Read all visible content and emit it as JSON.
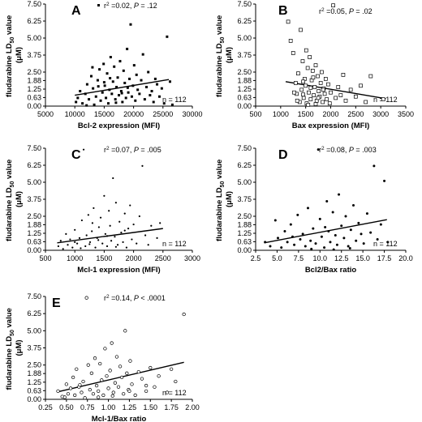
{
  "chart_data": [
    {
      "type": "scatter",
      "panel_label": "A",
      "xlabel": "Bcl-2 expression (MFI)",
      "ylabel": "fludarabine LD50 value (μM)",
      "xlim": [
        5000,
        30000
      ],
      "ylim": [
        0,
        7.5
      ],
      "xticks": [
        "5000",
        "10000",
        "15000",
        "20000",
        "25000",
        "30000"
      ],
      "yticks": [
        "0.00",
        "0.63",
        "1.25",
        "1.88",
        "2.50",
        "3.75",
        "5.00",
        "6.25",
        "7.50"
      ],
      "marker": "filled-square",
      "stats": {
        "r2": "0.02",
        "p": ".12"
      },
      "n_label": "n = 112",
      "regression": [
        [
          10000,
          0.8
        ],
        [
          26000,
          1.95
        ]
      ],
      "points": [
        [
          10200,
          0.3
        ],
        [
          10500,
          0.6
        ],
        [
          10900,
          1.1
        ],
        [
          11300,
          0.2
        ],
        [
          11800,
          0.9
        ],
        [
          12100,
          1.6
        ],
        [
          12400,
          0.5
        ],
        [
          12800,
          2.2
        ],
        [
          13100,
          1.3
        ],
        [
          13300,
          0.1
        ],
        [
          13600,
          0.7
        ],
        [
          13900,
          1.9
        ],
        [
          14200,
          2.7
        ],
        [
          14400,
          0.4
        ],
        [
          14700,
          1.0
        ],
        [
          14900,
          3.1
        ],
        [
          15100,
          1.5
        ],
        [
          15300,
          0.6
        ],
        [
          15500,
          2.4
        ],
        [
          15700,
          0.2
        ],
        [
          15900,
          1.2
        ],
        [
          16100,
          3.6
        ],
        [
          16300,
          0.9
        ],
        [
          16500,
          1.8
        ],
        [
          16700,
          2.9
        ],
        [
          16900,
          0.5
        ],
        [
          17100,
          1.4
        ],
        [
          17300,
          2.1
        ],
        [
          17500,
          0.8
        ],
        [
          17700,
          3.3
        ],
        [
          17900,
          1.1
        ],
        [
          18100,
          0.3
        ],
        [
          18300,
          2.6
        ],
        [
          18500,
          1.7
        ],
        [
          18700,
          0.6
        ],
        [
          18900,
          4.2
        ],
        [
          19100,
          1.0
        ],
        [
          19300,
          2.0
        ],
        [
          19500,
          6.0
        ],
        [
          19700,
          0.7
        ],
        [
          19900,
          1.5
        ],
        [
          20100,
          3.0
        ],
        [
          20300,
          0.4
        ],
        [
          20500,
          2.3
        ],
        [
          20700,
          1.2
        ],
        [
          21000,
          0.9
        ],
        [
          21300,
          1.9
        ],
        [
          21600,
          3.8
        ],
        [
          21900,
          0.5
        ],
        [
          22200,
          1.4
        ],
        [
          22500,
          2.5
        ],
        [
          22800,
          0.8
        ],
        [
          23100,
          1.1
        ],
        [
          23400,
          0.3
        ],
        [
          23700,
          2.0
        ],
        [
          24000,
          1.6
        ],
        [
          24400,
          0.7
        ],
        [
          24800,
          1.3
        ],
        [
          25200,
          0.2
        ],
        [
          25700,
          5.1
        ],
        [
          26200,
          1.8
        ],
        [
          26600,
          0.1
        ],
        [
          12000,
          0.05
        ],
        [
          14000,
          1.45
        ],
        [
          16000,
          2.05
        ],
        [
          18000,
          0.95
        ],
        [
          15000,
          1.75
        ],
        [
          17000,
          0.25
        ],
        [
          19000,
          1.35
        ],
        [
          13000,
          2.85
        ]
      ]
    },
    {
      "type": "scatter",
      "panel_label": "B",
      "xlabel": "Bax expression (MFI)",
      "ylabel": "fludarabine LD50 value (μM)",
      "xlim": [
        500,
        3500
      ],
      "ylim": [
        0,
        7.5
      ],
      "xticks": [
        "500",
        "1000",
        "1500",
        "2000",
        "2500",
        "3000",
        "3500"
      ],
      "yticks": [
        "0.00",
        "0.63",
        "1.25",
        "1.88",
        "2.50",
        "3.75",
        "5.00",
        "6.25",
        "7.50"
      ],
      "marker": "open-square",
      "stats": {
        "r2": "0.05",
        "p": ".02"
      },
      "n_label": "n = 112",
      "regression": [
        [
          1100,
          1.8
        ],
        [
          3100,
          0.55
        ]
      ],
      "points": [
        [
          1150,
          6.2
        ],
        [
          1200,
          4.8
        ],
        [
          1250,
          3.9
        ],
        [
          1300,
          1.7
        ],
        [
          1320,
          0.9
        ],
        [
          1350,
          2.4
        ],
        [
          1380,
          0.3
        ],
        [
          1400,
          5.6
        ],
        [
          1420,
          1.2
        ],
        [
          1440,
          3.3
        ],
        [
          1460,
          0.6
        ],
        [
          1480,
          2.0
        ],
        [
          1500,
          1.5
        ],
        [
          1510,
          4.1
        ],
        [
          1520,
          0.2
        ],
        [
          1540,
          2.8
        ],
        [
          1560,
          1.0
        ],
        [
          1580,
          3.6
        ],
        [
          1600,
          0.5
        ],
        [
          1620,
          1.9
        ],
        [
          1640,
          2.6
        ],
        [
          1660,
          0.8
        ],
        [
          1680,
          1.4
        ],
        [
          1700,
          3.0
        ],
        [
          1720,
          0.4
        ],
        [
          1740,
          2.2
        ],
        [
          1760,
          1.1
        ],
        [
          1780,
          0.7
        ],
        [
          1800,
          1.7
        ],
        [
          1820,
          2.5
        ],
        [
          1840,
          0.3
        ],
        [
          1860,
          1.3
        ],
        [
          1880,
          0.9
        ],
        [
          1900,
          2.0
        ],
        [
          1920,
          0.5
        ],
        [
          1950,
          1.6
        ],
        [
          1980,
          0.2
        ],
        [
          2000,
          1.0
        ],
        [
          2050,
          7.4
        ],
        [
          2100,
          0.6
        ],
        [
          2150,
          1.4
        ],
        [
          2200,
          0.8
        ],
        [
          2250,
          2.3
        ],
        [
          2300,
          0.4
        ],
        [
          2400,
          1.2
        ],
        [
          2500,
          0.7
        ],
        [
          2600,
          1.5
        ],
        [
          2700,
          0.3
        ],
        [
          2800,
          2.2
        ],
        [
          3050,
          0.5
        ],
        [
          1270,
          1.0
        ],
        [
          1330,
          0.4
        ],
        [
          1450,
          1.8
        ],
        [
          1550,
          0.1
        ],
        [
          1650,
          2.1
        ],
        [
          1750,
          0.6
        ],
        [
          1850,
          1.2
        ],
        [
          1450,
          0.85
        ],
        [
          1600,
          1.35
        ],
        [
          1700,
          0.15
        ]
      ]
    },
    {
      "type": "scatter",
      "panel_label": "C",
      "xlabel": "Mcl-1 expression (MFI)",
      "ylabel": "fludarabine LD50 value (μM)",
      "xlim": [
        500,
        3000
      ],
      "ylim": [
        0,
        7.5
      ],
      "xticks": [
        "500",
        "1000",
        "1500",
        "2000",
        "2500",
        "3000"
      ],
      "yticks": [
        "0.00",
        "0.63",
        "1.25",
        "1.88",
        "2.50",
        "3.75",
        "5.00",
        "6.25",
        "7.50"
      ],
      "marker": "small-dot",
      "stats": {
        "r2": "0.07",
        "p": ".005"
      },
      "n_label": "n = 112",
      "regression": [
        [
          700,
          0.55
        ],
        [
          2500,
          1.6
        ]
      ],
      "points": [
        [
          720,
          0.3
        ],
        [
          760,
          0.7
        ],
        [
          800,
          0.1
        ],
        [
          850,
          1.2
        ],
        [
          880,
          0.4
        ],
        [
          920,
          0.8
        ],
        [
          960,
          0.2
        ],
        [
          1000,
          1.5
        ],
        [
          1040,
          0.5
        ],
        [
          1080,
          0.9
        ],
        [
          1120,
          2.2
        ],
        [
          1150,
          7.4
        ],
        [
          1180,
          0.3
        ],
        [
          1200,
          1.1
        ],
        [
          1230,
          2.6
        ],
        [
          1260,
          0.6
        ],
        [
          1290,
          1.4
        ],
        [
          1320,
          3.1
        ],
        [
          1350,
          0.2
        ],
        [
          1380,
          0.9
        ],
        [
          1410,
          1.7
        ],
        [
          1440,
          2.4
        ],
        [
          1470,
          0.5
        ],
        [
          1500,
          4.0
        ],
        [
          1520,
          1.2
        ],
        [
          1550,
          0.3
        ],
        [
          1580,
          2.9
        ],
        [
          1600,
          1.8
        ],
        [
          1620,
          0.7
        ],
        [
          1650,
          5.3
        ],
        [
          1680,
          1.0
        ],
        [
          1700,
          3.5
        ],
        [
          1730,
          0.4
        ],
        [
          1760,
          2.1
        ],
        [
          1790,
          1.3
        ],
        [
          1820,
          0.6
        ],
        [
          1850,
          2.7
        ],
        [
          1880,
          0.2
        ],
        [
          1910,
          1.6
        ],
        [
          1940,
          3.3
        ],
        [
          1970,
          0.8
        ],
        [
          2000,
          1.9
        ],
        [
          2050,
          0.5
        ],
        [
          2100,
          2.5
        ],
        [
          2150,
          6.2
        ],
        [
          2200,
          1.1
        ],
        [
          2250,
          0.4
        ],
        [
          2300,
          1.8
        ],
        [
          2400,
          0.9
        ],
        [
          2450,
          2.0
        ],
        [
          1100,
          0.15
        ],
        [
          1250,
          0.45
        ],
        [
          1400,
          0.75
        ],
        [
          1550,
          1.05
        ],
        [
          1700,
          0.25
        ],
        [
          1850,
          1.45
        ],
        [
          1300,
          2.0
        ],
        [
          1000,
          0.6
        ]
      ]
    },
    {
      "type": "scatter",
      "panel_label": "D",
      "xlabel": "Bcl2/Bax ratio",
      "ylabel": "fludarabine LD50 value (μM)",
      "xlim": [
        2.5,
        20.0
      ],
      "ylim": [
        0,
        7.5
      ],
      "xticks": [
        "2.5",
        "5.0",
        "7.5",
        "10.0",
        "12.5",
        "15.0",
        "17.5",
        "20.0"
      ],
      "yticks": [
        "0.00",
        "0.63",
        "1.25",
        "1.88",
        "2.50",
        "3.75",
        "5.00",
        "6.25",
        "7.50"
      ],
      "marker": "filled-dot",
      "stats": {
        "r2": "0.08",
        "p": ".003"
      },
      "n_label": "n = 112",
      "regression": [
        [
          3.5,
          0.55
        ],
        [
          17.8,
          2.25
        ]
      ],
      "points": [
        [
          3.6,
          0.6
        ],
        [
          4.2,
          0.3
        ],
        [
          4.8,
          2.2
        ],
        [
          5.1,
          0.9
        ],
        [
          5.5,
          0.2
        ],
        [
          5.9,
          1.4
        ],
        [
          6.2,
          0.6
        ],
        [
          6.6,
          1.9
        ],
        [
          7.0,
          0.4
        ],
        [
          7.4,
          2.6
        ],
        [
          7.7,
          0.8
        ],
        [
          8.0,
          1.2
        ],
        [
          8.3,
          0.3
        ],
        [
          8.6,
          3.1
        ],
        [
          8.9,
          0.7
        ],
        [
          9.2,
          1.6
        ],
        [
          9.5,
          0.5
        ],
        [
          9.8,
          7.4
        ],
        [
          10.0,
          2.3
        ],
        [
          10.2,
          1.0
        ],
        [
          10.5,
          0.2
        ],
        [
          10.8,
          3.6
        ],
        [
          11.0,
          1.4
        ],
        [
          11.2,
          0.6
        ],
        [
          11.5,
          2.8
        ],
        [
          11.8,
          1.1
        ],
        [
          12.0,
          0.4
        ],
        [
          12.2,
          4.1
        ],
        [
          12.5,
          1.8
        ],
        [
          12.8,
          0.9
        ],
        [
          13.0,
          2.5
        ],
        [
          13.3,
          0.3
        ],
        [
          13.6,
          1.5
        ],
        [
          13.9,
          3.3
        ],
        [
          14.2,
          0.7
        ],
        [
          14.5,
          2.0
        ],
        [
          14.8,
          1.2
        ],
        [
          15.1,
          0.5
        ],
        [
          15.5,
          2.7
        ],
        [
          15.9,
          1.3
        ],
        [
          16.3,
          6.2
        ],
        [
          16.7,
          0.8
        ],
        [
          17.1,
          1.9
        ],
        [
          17.5,
          5.1
        ],
        [
          17.9,
          0.6
        ],
        [
          9.0,
          0.1
        ],
        [
          11.6,
          0.05
        ],
        [
          6.8,
          1.0
        ],
        [
          13.5,
          0.15
        ],
        [
          10.6,
          1.7
        ]
      ]
    },
    {
      "type": "scatter",
      "panel_label": "E",
      "xlabel": "Mcl-1/Bax ratio",
      "ylabel": "fludarabine LD50 value (μM)",
      "xlim": [
        0.25,
        2.0
      ],
      "ylim": [
        0,
        7.5
      ],
      "xticks": [
        "0.25",
        "0.50",
        "0.75",
        "1.00",
        "1.25",
        "1.50",
        "1.75",
        "2.00"
      ],
      "yticks": [
        "0.00",
        "0.63",
        "1.25",
        "1.88",
        "2.50",
        "3.75",
        "5.00",
        "6.25",
        "7.50"
      ],
      "marker": "open-circle",
      "stats": {
        "r2": "0.14",
        "p": "< .0001"
      },
      "n_label": "n = 112",
      "regression": [
        [
          0.4,
          0.55
        ],
        [
          1.9,
          2.7
        ]
      ],
      "points": [
        [
          0.4,
          0.6
        ],
        [
          0.45,
          0.2
        ],
        [
          0.5,
          1.1
        ],
        [
          0.52,
          0.4
        ],
        [
          0.55,
          0.8
        ],
        [
          0.58,
          1.6
        ],
        [
          0.6,
          0.3
        ],
        [
          0.62,
          2.2
        ],
        [
          0.65,
          0.9
        ],
        [
          0.68,
          0.5
        ],
        [
          0.7,
          1.3
        ],
        [
          0.72,
          0.1
        ],
        [
          0.74,
          7.4
        ],
        [
          0.76,
          2.5
        ],
        [
          0.78,
          0.7
        ],
        [
          0.8,
          1.9
        ],
        [
          0.82,
          0.4
        ],
        [
          0.84,
          3.0
        ],
        [
          0.86,
          1.0
        ],
        [
          0.88,
          0.6
        ],
        [
          0.9,
          2.6
        ],
        [
          0.92,
          1.4
        ],
        [
          0.94,
          0.3
        ],
        [
          0.96,
          3.7
        ],
        [
          0.98,
          1.7
        ],
        [
          1.0,
          0.8
        ],
        [
          1.02,
          2.1
        ],
        [
          1.04,
          4.1
        ],
        [
          1.06,
          0.5
        ],
        [
          1.08,
          1.2
        ],
        [
          1.1,
          3.1
        ],
        [
          1.12,
          0.9
        ],
        [
          1.14,
          2.4
        ],
        [
          1.16,
          1.6
        ],
        [
          1.18,
          0.4
        ],
        [
          1.2,
          5.0
        ],
        [
          1.22,
          1.9
        ],
        [
          1.24,
          0.7
        ],
        [
          1.26,
          2.8
        ],
        [
          1.28,
          1.1
        ],
        [
          1.32,
          0.3
        ],
        [
          1.36,
          2.0
        ],
        [
          1.4,
          1.5
        ],
        [
          1.45,
          0.6
        ],
        [
          1.5,
          2.3
        ],
        [
          1.55,
          0.9
        ],
        [
          1.6,
          1.7
        ],
        [
          1.7,
          0.5
        ],
        [
          1.8,
          1.3
        ],
        [
          1.9,
          6.2
        ],
        [
          0.48,
          0.15
        ],
        [
          0.66,
          1.05
        ],
        [
          0.88,
          0.15
        ],
        [
          1.05,
          0.25
        ],
        [
          1.25,
          0.6
        ],
        [
          1.45,
          1.0
        ],
        [
          1.75,
          2.2
        ]
      ]
    }
  ]
}
